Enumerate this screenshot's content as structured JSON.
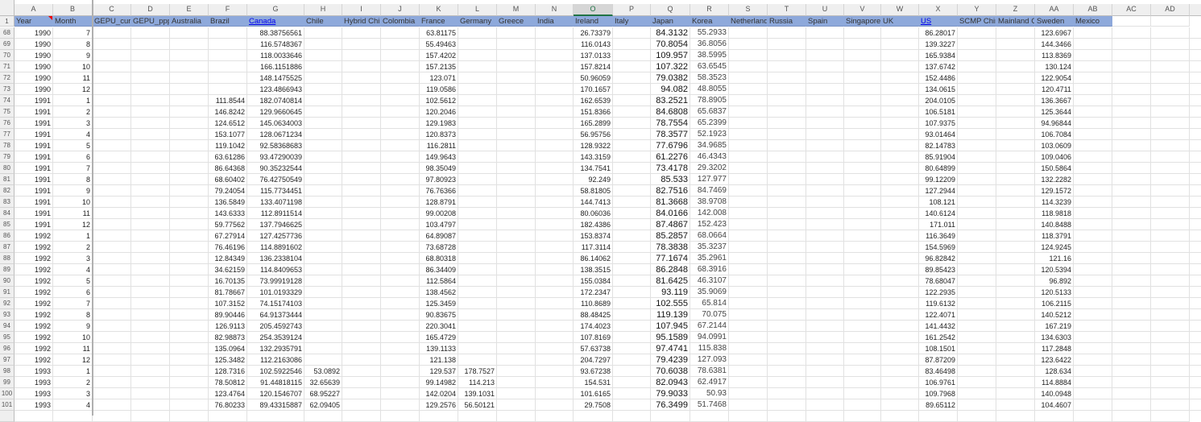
{
  "sheet": {
    "selected_column": "O",
    "header_fill": "#8ea9db",
    "columns": [
      {
        "letter": "A",
        "header": "Year"
      },
      {
        "letter": "B",
        "header": "Month"
      },
      {
        "letter": "C",
        "header": "GEPU_current"
      },
      {
        "letter": "D",
        "header": "GEPU_ppp"
      },
      {
        "letter": "E",
        "header": "Australia"
      },
      {
        "letter": "F",
        "header": "Brazil"
      },
      {
        "letter": "G",
        "header": "Canada",
        "link": true
      },
      {
        "letter": "H",
        "header": "Chile"
      },
      {
        "letter": "I",
        "header": "Hybrid China"
      },
      {
        "letter": "J",
        "header": "Colombia"
      },
      {
        "letter": "K",
        "header": "France"
      },
      {
        "letter": "L",
        "header": "Germany"
      },
      {
        "letter": "M",
        "header": "Greece"
      },
      {
        "letter": "N",
        "header": "India"
      },
      {
        "letter": "O",
        "header": "Ireland"
      },
      {
        "letter": "P",
        "header": "Italy"
      },
      {
        "letter": "Q",
        "header": "Japan"
      },
      {
        "letter": "R",
        "header": "Korea"
      },
      {
        "letter": "S",
        "header": "Netherlands"
      },
      {
        "letter": "T",
        "header": "Russia"
      },
      {
        "letter": "U",
        "header": "Spain"
      },
      {
        "letter": "V",
        "header": "Singapore"
      },
      {
        "letter": "W",
        "header": "UK"
      },
      {
        "letter": "X",
        "header": "US",
        "link": true
      },
      {
        "letter": "Y",
        "header": "SCMP China"
      },
      {
        "letter": "Z",
        "header": "Mainland China"
      },
      {
        "letter": "AA",
        "header": "Sweden"
      },
      {
        "letter": "AB",
        "header": "Mexico"
      },
      {
        "letter": "AC",
        "header": ""
      },
      {
        "letter": "AD",
        "header": ""
      }
    ],
    "header_row_number": "1",
    "rows": [
      {
        "n": "68",
        "c": {
          "A": "1990",
          "B": "7",
          "G": "88.38756561",
          "K": "63.81175",
          "O": "26.73379",
          "Q": "84.3132",
          "R": "55.2933",
          "X": "86.28017",
          "AA": "123.6967"
        }
      },
      {
        "n": "69",
        "c": {
          "A": "1990",
          "B": "8",
          "G": "116.5748367",
          "K": "55.49463",
          "O": "116.0143",
          "Q": "70.8054",
          "R": "36.8056",
          "X": "139.3227",
          "AA": "144.3466"
        }
      },
      {
        "n": "70",
        "c": {
          "A": "1990",
          "B": "9",
          "G": "118.0033646",
          "K": "157.4202",
          "O": "137.0133",
          "Q": "109.957",
          "R": "38.5995",
          "X": "165.9384",
          "AA": "113.8369"
        }
      },
      {
        "n": "71",
        "c": {
          "A": "1990",
          "B": "10",
          "G": "166.1151886",
          "K": "157.2135",
          "O": "157.8214",
          "Q": "107.322",
          "R": "63.6545",
          "X": "137.6742",
          "AA": "130.124"
        }
      },
      {
        "n": "72",
        "c": {
          "A": "1990",
          "B": "11",
          "G": "148.1475525",
          "K": "123.071",
          "O": "50.96059",
          "Q": "79.0382",
          "R": "58.3523",
          "X": "152.4486",
          "AA": "122.9054"
        }
      },
      {
        "n": "73",
        "c": {
          "A": "1990",
          "B": "12",
          "G": "123.4866943",
          "K": "119.0586",
          "O": "170.1657",
          "Q": "94.082",
          "R": "48.8055",
          "X": "134.0615",
          "AA": "120.4711"
        }
      },
      {
        "n": "74",
        "c": {
          "A": "1991",
          "B": "1",
          "F": "111.8544",
          "G": "182.0740814",
          "K": "102.5612",
          "O": "162.6539",
          "Q": "83.2521",
          "R": "78.8905",
          "X": "204.0105",
          "AA": "136.3667"
        }
      },
      {
        "n": "75",
        "c": {
          "A": "1991",
          "B": "2",
          "F": "146.8242",
          "G": "129.9660645",
          "K": "120.2046",
          "O": "151.8366",
          "Q": "84.6808",
          "R": "65.6837",
          "X": "106.5181",
          "AA": "125.3644"
        }
      },
      {
        "n": "76",
        "c": {
          "A": "1991",
          "B": "3",
          "F": "124.6512",
          "G": "145.0634003",
          "K": "129.1983",
          "O": "165.2899",
          "Q": "78.7554",
          "R": "65.2399",
          "X": "107.9375",
          "AA": "94.96844"
        }
      },
      {
        "n": "77",
        "c": {
          "A": "1991",
          "B": "4",
          "F": "153.1077",
          "G": "128.0671234",
          "K": "120.8373",
          "O": "56.95756",
          "Q": "78.3577",
          "R": "52.1923",
          "X": "93.01464",
          "AA": "106.7084"
        }
      },
      {
        "n": "78",
        "c": {
          "A": "1991",
          "B": "5",
          "F": "119.1042",
          "G": "92.58368683",
          "K": "116.2811",
          "O": "128.9322",
          "Q": "77.6796",
          "R": "34.9685",
          "X": "82.14783",
          "AA": "103.0609"
        }
      },
      {
        "n": "79",
        "c": {
          "A": "1991",
          "B": "6",
          "F": "63.61286",
          "G": "93.47290039",
          "K": "149.9643",
          "O": "143.3159",
          "Q": "61.2276",
          "R": "46.4343",
          "X": "85.91904",
          "AA": "109.0406"
        }
      },
      {
        "n": "80",
        "c": {
          "A": "1991",
          "B": "7",
          "F": "86.64368",
          "G": "90.35232544",
          "K": "98.35049",
          "O": "134.7541",
          "Q": "73.4178",
          "R": "29.3202",
          "X": "80.64899",
          "AA": "150.5864"
        }
      },
      {
        "n": "81",
        "c": {
          "A": "1991",
          "B": "8",
          "F": "68.60402",
          "G": "76.42750549",
          "K": "97.80923",
          "O": "92.249",
          "Q": "85.533",
          "R": "127.977",
          "X": "99.12209",
          "AA": "132.2282"
        }
      },
      {
        "n": "82",
        "c": {
          "A": "1991",
          "B": "9",
          "F": "79.24054",
          "G": "115.7734451",
          "K": "76.76366",
          "O": "58.81805",
          "Q": "82.7516",
          "R": "84.7469",
          "X": "127.2944",
          "AA": "129.1572"
        }
      },
      {
        "n": "83",
        "c": {
          "A": "1991",
          "B": "10",
          "F": "136.5849",
          "G": "133.4071198",
          "K": "128.8791",
          "O": "144.7413",
          "Q": "81.3668",
          "R": "38.9708",
          "X": "108.121",
          "AA": "114.3239"
        }
      },
      {
        "n": "84",
        "c": {
          "A": "1991",
          "B": "11",
          "F": "143.6333",
          "G": "112.8911514",
          "K": "99.00208",
          "O": "80.06036",
          "Q": "84.0166",
          "R": "142.008",
          "X": "140.6124",
          "AA": "118.9818"
        }
      },
      {
        "n": "85",
        "c": {
          "A": "1991",
          "B": "12",
          "F": "59.77562",
          "G": "137.7946625",
          "K": "103.4797",
          "O": "182.4386",
          "Q": "87.4867",
          "R": "152.423",
          "X": "171.011",
          "AA": "140.8488"
        }
      },
      {
        "n": "86",
        "c": {
          "A": "1992",
          "B": "1",
          "F": "67.27914",
          "G": "127.4257736",
          "K": "64.89087",
          "O": "153.8374",
          "Q": "85.2857",
          "R": "68.0664",
          "X": "116.3649",
          "AA": "118.3791"
        }
      },
      {
        "n": "87",
        "c": {
          "A": "1992",
          "B": "2",
          "F": "76.46196",
          "G": "114.8891602",
          "K": "73.68728",
          "O": "117.3114",
          "Q": "78.3838",
          "R": "35.3237",
          "X": "154.5969",
          "AA": "124.9245"
        }
      },
      {
        "n": "88",
        "c": {
          "A": "1992",
          "B": "3",
          "F": "12.84349",
          "G": "136.2338104",
          "K": "68.80318",
          "O": "86.14062",
          "Q": "77.1674",
          "R": "35.2961",
          "X": "96.82842",
          "AA": "121.16"
        }
      },
      {
        "n": "89",
        "c": {
          "A": "1992",
          "B": "4",
          "F": "34.62159",
          "G": "114.8409653",
          "K": "86.34409",
          "O": "138.3515",
          "Q": "86.2848",
          "R": "68.3916",
          "X": "89.85423",
          "AA": "120.5394"
        }
      },
      {
        "n": "90",
        "c": {
          "A": "1992",
          "B": "5",
          "F": "16.70135",
          "G": "73.99919128",
          "K": "112.5864",
          "O": "155.0384",
          "Q": "81.6425",
          "R": "46.3107",
          "X": "78.68047",
          "AA": "96.892"
        }
      },
      {
        "n": "91",
        "c": {
          "A": "1992",
          "B": "6",
          "F": "81.78667",
          "G": "101.0193329",
          "K": "138.4562",
          "O": "172.2347",
          "Q": "93.119",
          "R": "35.9069",
          "X": "122.2935",
          "AA": "120.5133"
        }
      },
      {
        "n": "92",
        "c": {
          "A": "1992",
          "B": "7",
          "F": "107.3152",
          "G": "74.15174103",
          "K": "125.3459",
          "O": "110.8689",
          "Q": "102.555",
          "R": "65.814",
          "X": "119.6132",
          "AA": "106.2115"
        }
      },
      {
        "n": "93",
        "c": {
          "A": "1992",
          "B": "8",
          "F": "89.90446",
          "G": "64.91373444",
          "K": "90.83675",
          "O": "88.48425",
          "Q": "119.139",
          "R": "70.075",
          "X": "122.4071",
          "AA": "140.5212"
        }
      },
      {
        "n": "94",
        "c": {
          "A": "1992",
          "B": "9",
          "F": "126.9113",
          "G": "205.4592743",
          "K": "220.3041",
          "O": "174.4023",
          "Q": "107.945",
          "R": "67.2144",
          "X": "141.4432",
          "AA": "167.219"
        }
      },
      {
        "n": "95",
        "c": {
          "A": "1992",
          "B": "10",
          "F": "82.98873",
          "G": "254.3539124",
          "K": "165.4729",
          "O": "107.8169",
          "Q": "95.1589",
          "R": "94.0991",
          "X": "161.2542",
          "AA": "134.6303"
        }
      },
      {
        "n": "96",
        "c": {
          "A": "1992",
          "B": "11",
          "F": "135.0964",
          "G": "132.2935791",
          "K": "139.1133",
          "O": "57.63738",
          "Q": "97.4741",
          "R": "115.838",
          "X": "108.1501",
          "AA": "117.2848"
        }
      },
      {
        "n": "97",
        "c": {
          "A": "1992",
          "B": "12",
          "F": "125.3482",
          "G": "112.2163086",
          "K": "121.138",
          "O": "204.7297",
          "Q": "79.4239",
          "R": "127.093",
          "X": "87.87209",
          "AA": "123.6422"
        }
      },
      {
        "n": "98",
        "c": {
          "A": "1993",
          "B": "1",
          "F": "128.7316",
          "G": "102.5922546",
          "H": "53.0892",
          "K": "129.537",
          "L": "178.7527",
          "O": "93.67238",
          "Q": "70.6038",
          "R": "78.6381",
          "X": "83.46498",
          "AA": "128.634"
        }
      },
      {
        "n": "99",
        "c": {
          "A": "1993",
          "B": "2",
          "F": "78.50812",
          "G": "91.44818115",
          "H": "32.65639",
          "K": "99.14982",
          "L": "114.213",
          "O": "154.531",
          "Q": "82.0943",
          "R": "62.4917",
          "X": "106.9761",
          "AA": "114.8884"
        }
      },
      {
        "n": "100",
        "c": {
          "A": "1993",
          "B": "3",
          "F": "123.4764",
          "G": "120.1546707",
          "H": "68.95227",
          "K": "142.0204",
          "L": "139.1031",
          "O": "101.6165",
          "Q": "79.9033",
          "R": "50.93",
          "X": "109.7968",
          "AA": "140.0948"
        }
      },
      {
        "n": "101",
        "c": {
          "A": "1993",
          "B": "4",
          "F": "76.80233",
          "G": "89.43315887",
          "H": "62.09405",
          "K": "129.2576",
          "L": "56.50121",
          "O": "29.7508",
          "Q": "76.3499",
          "R": "51.7468",
          "X": "89.65112",
          "AA": "104.4607"
        }
      }
    ]
  }
}
